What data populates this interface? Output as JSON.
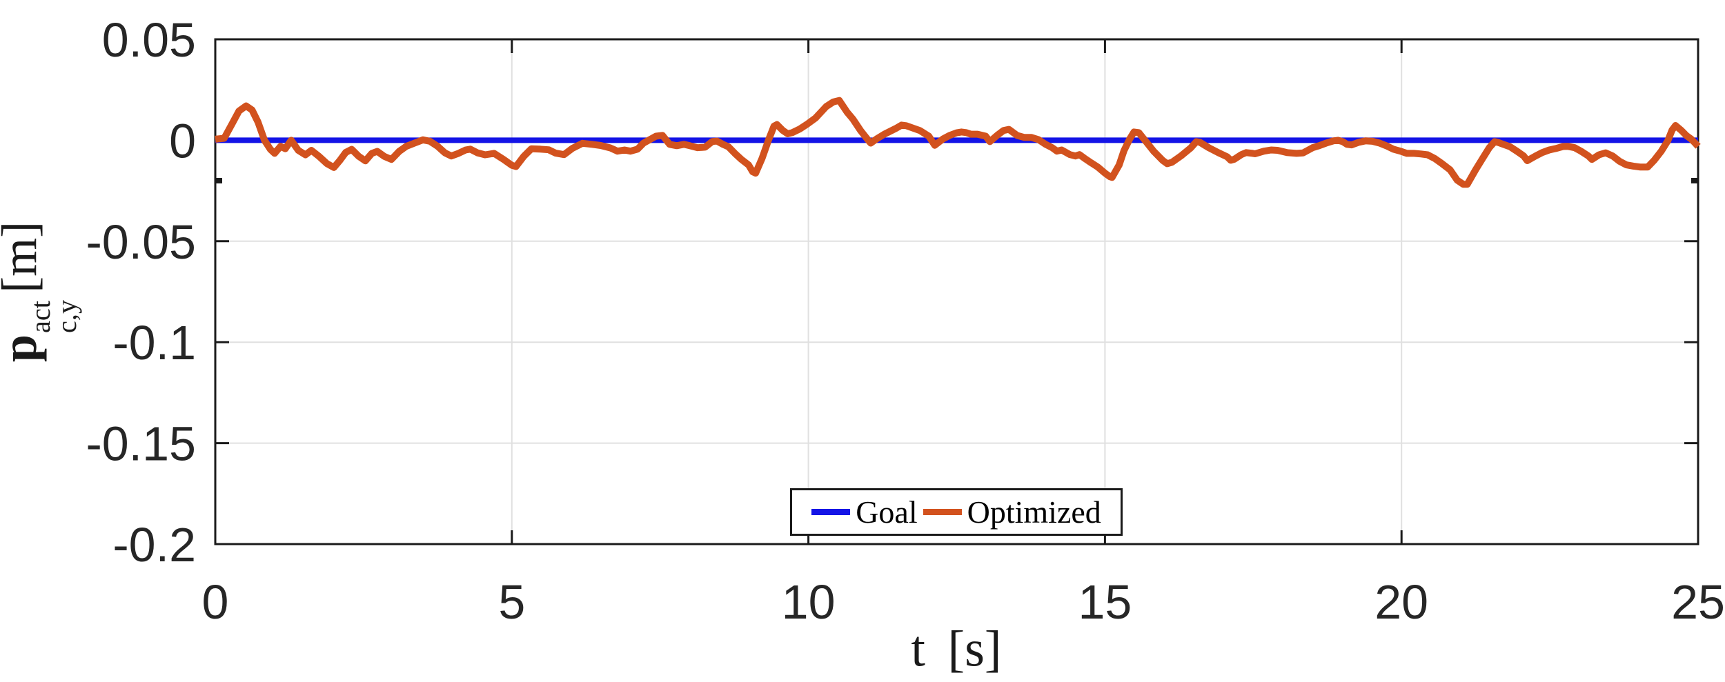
{
  "figure": {
    "background": "#ffffff"
  },
  "axis": {
    "color": "#1a1a1a",
    "grid_color": "#e0e0e0",
    "tick_label_color": "#262626",
    "tick_length": 20,
    "minor_yticks": [
      -0.02
    ]
  },
  "ylabel": {
    "base": "p",
    "sup": "act",
    "sub": "c,y",
    "unit": "[m]"
  },
  "xlabel": "t [s]",
  "legend": {
    "position": "south",
    "items": [
      {
        "label": "Goal",
        "color": "#1414e6"
      },
      {
        "label": "Optimized",
        "color": "#d2521e"
      }
    ]
  },
  "chart_data": {
    "type": "line",
    "title": "",
    "xlabel": "t [s]",
    "ylabel": "p_{c,y}^{act} [m]",
    "xlim": [
      0,
      25
    ],
    "ylim": [
      -0.2,
      0.05
    ],
    "xticks": [
      0,
      5,
      10,
      15,
      20,
      25
    ],
    "xtick_labels": [
      "0",
      "5",
      "10",
      "15",
      "20",
      "25"
    ],
    "yticks": [
      0.05,
      0,
      -0.05,
      -0.1,
      -0.15,
      -0.2
    ],
    "ytick_labels": [
      "0.05",
      "0",
      "-0.05",
      "-0.1",
      "-0.15",
      "-0.2"
    ],
    "grid": true,
    "legend_position": "south",
    "series": [
      {
        "name": "Goal",
        "color": "#1414e6",
        "width": 8,
        "x": [
          0,
          25
        ],
        "y": [
          0,
          0
        ]
      },
      {
        "name": "Optimized",
        "color": "#d2521e",
        "width": 10,
        "x": [
          0.0,
          0.15,
          0.28,
          0.4,
          0.52,
          0.62,
          0.72,
          0.83,
          0.93,
          1.0,
          1.1,
          1.18,
          1.28,
          1.4,
          1.52,
          1.62,
          1.75,
          1.88,
          2.0,
          2.1,
          2.2,
          2.3,
          2.42,
          2.53,
          2.64,
          2.73,
          2.85,
          2.97,
          3.1,
          3.22,
          3.36,
          3.5,
          3.62,
          3.75,
          3.87,
          3.98,
          4.1,
          4.22,
          4.3,
          4.42,
          4.55,
          4.7,
          4.86,
          5.0,
          5.07,
          5.2,
          5.33,
          5.48,
          5.62,
          5.74,
          5.88,
          6.02,
          6.19,
          6.35,
          6.5,
          6.66,
          6.78,
          6.9,
          7.0,
          7.12,
          7.22,
          7.43,
          7.54,
          7.66,
          7.78,
          7.9,
          8.0,
          8.13,
          8.26,
          8.38,
          8.46,
          8.56,
          8.65,
          8.76,
          8.87,
          8.99,
          9.06,
          9.11,
          9.22,
          9.33,
          9.42,
          9.47,
          9.57,
          9.65,
          9.73,
          9.85,
          9.99,
          10.12,
          10.3,
          10.42,
          10.52,
          10.65,
          10.75,
          10.88,
          11.0,
          11.05,
          11.15,
          11.28,
          11.47,
          11.57,
          11.65,
          11.88,
          12.03,
          12.13,
          12.27,
          12.38,
          12.5,
          12.58,
          12.66,
          12.74,
          12.85,
          12.99,
          13.06,
          13.18,
          13.29,
          13.38,
          13.52,
          13.64,
          13.76,
          13.88,
          14.0,
          14.11,
          14.19,
          14.27,
          14.41,
          14.5,
          14.57,
          14.65,
          14.77,
          14.88,
          15.0,
          15.08,
          15.12,
          15.24,
          15.32,
          15.42,
          15.49,
          15.57,
          15.7,
          15.82,
          15.97,
          16.05,
          16.13,
          16.28,
          16.45,
          16.54,
          16.6,
          16.75,
          16.91,
          17.06,
          17.12,
          17.18,
          17.3,
          17.38,
          17.49,
          17.53,
          17.68,
          17.8,
          17.91,
          18.07,
          18.23,
          18.34,
          18.5,
          18.61,
          18.73,
          18.85,
          18.93,
          19.01,
          19.08,
          19.16,
          19.28,
          19.39,
          19.51,
          19.63,
          19.74,
          19.86,
          19.98,
          20.09,
          20.21,
          20.33,
          20.44,
          20.56,
          20.67,
          20.82,
          20.94,
          21.04,
          21.11,
          21.25,
          21.37,
          21.48,
          21.57,
          21.64,
          21.83,
          21.95,
          22.06,
          22.12,
          22.26,
          22.37,
          22.49,
          22.6,
          22.72,
          22.8,
          22.92,
          23.03,
          23.15,
          23.21,
          23.33,
          23.44,
          23.56,
          23.68,
          23.79,
          23.91,
          24.03,
          24.15,
          24.26,
          24.38,
          24.49,
          24.56,
          24.62,
          24.72,
          24.8,
          24.88,
          24.95,
          25.0
        ],
        "y": [
          0.0005,
          0.001,
          0.008,
          0.0145,
          0.017,
          0.015,
          0.009,
          0.0,
          -0.0045,
          -0.0065,
          -0.003,
          -0.0042,
          0.0,
          -0.005,
          -0.0072,
          -0.005,
          -0.008,
          -0.0115,
          -0.0135,
          -0.01,
          -0.006,
          -0.0045,
          -0.008,
          -0.0102,
          -0.0065,
          -0.0055,
          -0.008,
          -0.0095,
          -0.0055,
          -0.003,
          -0.0014,
          0.0002,
          -0.0005,
          -0.003,
          -0.0062,
          -0.0078,
          -0.0065,
          -0.0048,
          -0.0044,
          -0.0062,
          -0.0072,
          -0.0065,
          -0.0095,
          -0.0124,
          -0.013,
          -0.008,
          -0.0042,
          -0.0044,
          -0.0047,
          -0.0064,
          -0.0071,
          -0.004,
          -0.0015,
          -0.002,
          -0.0026,
          -0.0038,
          -0.0054,
          -0.0048,
          -0.0054,
          -0.0044,
          -0.0014,
          0.002,
          0.0024,
          -0.002,
          -0.0027,
          -0.002,
          -0.0027,
          -0.0037,
          -0.0034,
          -0.0006,
          -0.0004,
          -0.002,
          -0.0032,
          -0.0065,
          -0.0095,
          -0.0122,
          -0.0156,
          -0.0163,
          -0.0088,
          0.0003,
          0.007,
          0.0078,
          0.0048,
          0.0032,
          0.0038,
          0.0055,
          0.0082,
          0.011,
          0.0167,
          0.019,
          0.0197,
          0.014,
          0.0105,
          0.0048,
          0.0003,
          -0.0014,
          0.0007,
          0.003,
          0.0058,
          0.0075,
          0.0072,
          0.0048,
          0.002,
          -0.0025,
          0.0007,
          0.0024,
          0.0037,
          0.0041,
          0.0038,
          0.003,
          0.003,
          0.002,
          -0.0007,
          0.0024,
          0.0048,
          0.0054,
          0.0024,
          0.0014,
          0.0014,
          0.0003,
          -0.002,
          -0.0037,
          -0.0054,
          -0.0048,
          -0.0071,
          -0.0078,
          -0.0071,
          -0.0088,
          -0.0112,
          -0.0133,
          -0.0163,
          -0.018,
          -0.0184,
          -0.0122,
          -0.0052,
          0.0008,
          0.0041,
          0.0038,
          -0.001,
          -0.0054,
          -0.0099,
          -0.0116,
          -0.0109,
          -0.0078,
          -0.0037,
          -0.0007,
          -0.001,
          -0.0037,
          -0.0061,
          -0.0082,
          -0.0099,
          -0.0094,
          -0.0071,
          -0.0061,
          -0.0065,
          -0.0067,
          -0.0054,
          -0.0048,
          -0.005,
          -0.0061,
          -0.0065,
          -0.0063,
          -0.0037,
          -0.0027,
          -0.0014,
          -0.0003,
          0.0,
          -0.0007,
          -0.002,
          -0.0023,
          -0.001,
          -0.0003,
          -0.0005,
          -0.0014,
          -0.0027,
          -0.0044,
          -0.0054,
          -0.0065,
          -0.0065,
          -0.0068,
          -0.0072,
          -0.009,
          -0.0113,
          -0.0147,
          -0.0198,
          -0.0218,
          -0.0218,
          -0.0146,
          -0.0088,
          -0.0037,
          -0.0007,
          -0.0012,
          -0.0032,
          -0.0055,
          -0.0078,
          -0.0101,
          -0.0078,
          -0.0061,
          -0.0048,
          -0.0041,
          -0.0031,
          -0.003,
          -0.0037,
          -0.0055,
          -0.0078,
          -0.0095,
          -0.0072,
          -0.0062,
          -0.0078,
          -0.0105,
          -0.0122,
          -0.0128,
          -0.0133,
          -0.0133,
          -0.0099,
          -0.0054,
          -0.0002,
          0.005,
          0.0073,
          0.0048,
          0.0024,
          0.0007,
          -0.0014,
          -0.003
        ]
      }
    ]
  }
}
